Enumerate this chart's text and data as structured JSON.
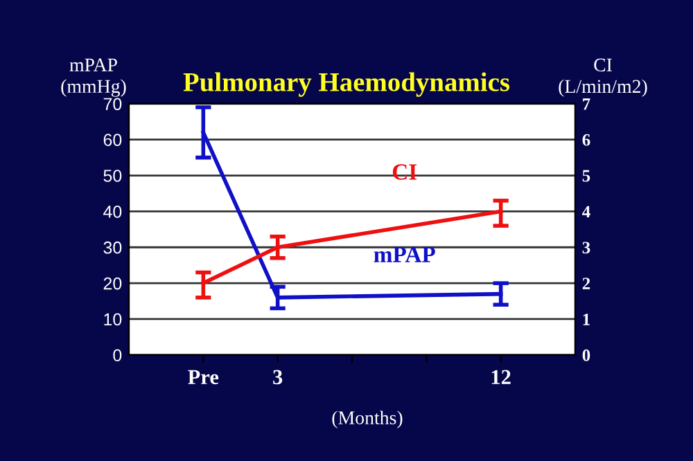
{
  "chart_data": {
    "type": "line",
    "title": "Pulmonary Haemodynamics",
    "ylabel": "mPAP\n(mmHg)",
    "y2label": "CI\n(L/min/m2)",
    "xlabel": "(Months)",
    "categories": [
      "Pre",
      "3",
      null,
      null,
      "12"
    ],
    "series": [
      {
        "name": "mPAP",
        "color": "#1010c8",
        "values": [
          62,
          16,
          null,
          null,
          17
        ],
        "errors": [
          [
            55,
            69
          ],
          [
            13,
            19
          ],
          null,
          null,
          [
            14,
            20
          ]
        ]
      },
      {
        "name": "CI",
        "color": "#ee1010",
        "axis": "y2",
        "values": [
          2.0,
          3.0,
          null,
          null,
          4.0
        ],
        "errors": [
          [
            1.6,
            2.3
          ],
          [
            2.7,
            3.3
          ],
          null,
          null,
          [
            3.6,
            4.3
          ]
        ]
      }
    ],
    "ylim": [
      0,
      70
    ],
    "yticks": [
      0,
      10,
      20,
      30,
      40,
      50,
      60,
      70
    ],
    "y2lim": [
      0,
      7
    ],
    "y2ticks": [
      0,
      1,
      2,
      3,
      4,
      5,
      6,
      7
    ],
    "grid": "y",
    "marker": "none",
    "line_style": "solid",
    "legend": false
  }
}
